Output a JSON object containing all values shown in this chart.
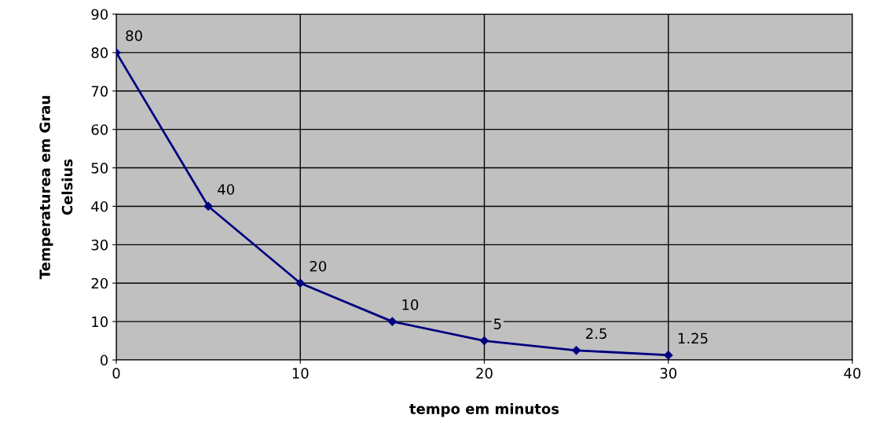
{
  "chart_data": {
    "type": "line",
    "xlabel": "tempo em minutos",
    "ylabel": "Temperaturea em Grau\nCelsius",
    "x": [
      0,
      5,
      10,
      15,
      20,
      25,
      30
    ],
    "series": [
      {
        "color": "#000080",
        "values": [
          80,
          40,
          20,
          10,
          5,
          2.5,
          1.25
        ]
      }
    ],
    "marker": "diamond",
    "data_labels": true,
    "grid": true,
    "legend": false,
    "xlim": [
      0,
      40
    ],
    "xticks": [
      0,
      10,
      20,
      30,
      40
    ],
    "ylim": [
      0,
      90
    ],
    "yticks": [
      0,
      10,
      20,
      30,
      40,
      50,
      60,
      70,
      80,
      90
    ]
  }
}
